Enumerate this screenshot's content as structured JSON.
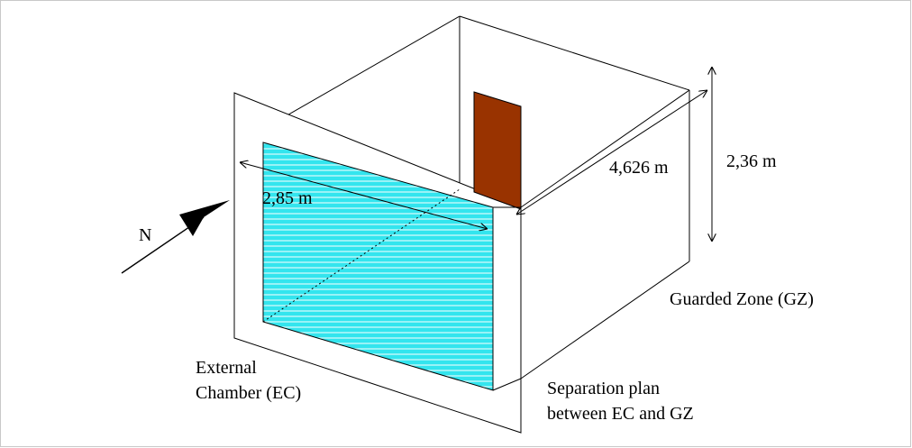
{
  "labels": {
    "north": "N",
    "width_dimension": "2,85 m",
    "depth_dimension": "4,626 m",
    "height_dimension": "2,36 m",
    "guarded_zone": "Guarded Zone (GZ)",
    "external_chamber_line1": "External",
    "external_chamber_line2": "Chamber (EC)",
    "separation_line1": "Separation plan",
    "separation_line2": "between EC and GZ"
  },
  "colors": {
    "window_fill": "#33e5ee",
    "window_stripes": "#ffffff",
    "door_fill": "#993300",
    "lines": "#000000",
    "frame": "#c8c8c8"
  }
}
